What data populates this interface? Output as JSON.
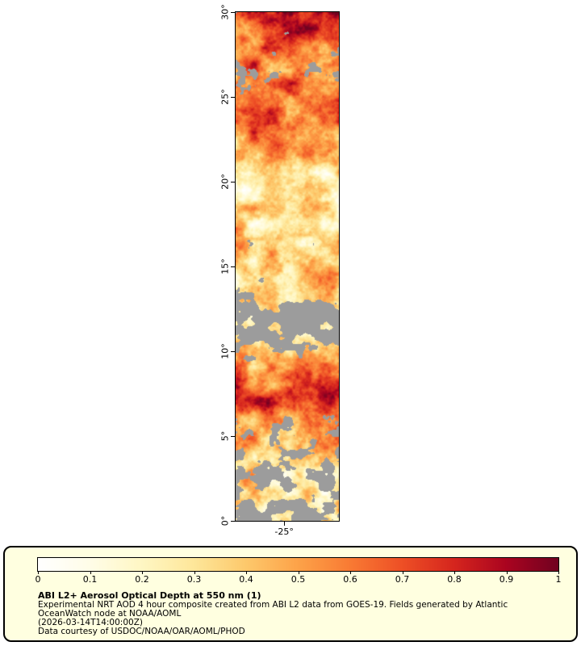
{
  "figure": {
    "map": {
      "no_data_color": "#9c9c9c",
      "border_color": "#000000",
      "y_axis_ticks": [
        {
          "label": "30°",
          "lat": 30
        },
        {
          "label": "25°",
          "lat": 25
        },
        {
          "label": "20°",
          "lat": 20
        },
        {
          "label": "15°",
          "lat": 15
        },
        {
          "label": "10°",
          "lat": 10
        },
        {
          "label": "5°",
          "lat": 5
        },
        {
          "label": "0°",
          "lat": 0
        }
      ],
      "x_axis_ticks": [
        {
          "label": "-25°",
          "frac": 0.47
        }
      ]
    },
    "legend": {
      "background": "#ffffe0",
      "border_color": "#000000",
      "colorbar_ticks": [
        "0",
        "0.1",
        "0.2",
        "0.3",
        "0.4",
        "0.5",
        "0.6",
        "0.7",
        "0.8",
        "0.9",
        "1"
      ],
      "colorbar_colors": [
        "#ffffff",
        "#fffde8",
        "#fff7c4",
        "#fee79a",
        "#fdc96c",
        "#fda349",
        "#f97b34",
        "#ee5026",
        "#d6261e",
        "#ab0520",
        "#720220"
      ],
      "title": "ABI L2+ Aerosol Optical Depth at 550 nm (1)",
      "lines": [
        "Experimental NRT AOD 4 hour composite created from ABI L2 data from GOES-19. Fields generated by Atlantic",
        "OceanWatch node at NOAA/AOML",
        "(2026-03-14T14:00:00Z)",
        "Data courtesy of USDOC/NOAA/OAR/AOML/PHOD"
      ]
    }
  },
  "chart_data": {
    "type": "heatmap",
    "title": "ABI L2+ Aerosol Optical Depth at 550 nm (1)",
    "colorbar": {
      "tick_values": [
        0,
        0.1,
        0.2,
        0.3,
        0.4,
        0.5,
        0.6,
        0.7,
        0.8,
        0.9,
        1
      ],
      "range": [
        0,
        1
      ]
    },
    "y_axis": {
      "tick_values_deg": [
        0,
        5,
        10,
        15,
        20,
        25,
        30
      ]
    },
    "x_axis": {
      "tick_values_deg": [
        -25
      ]
    },
    "no_data_shown_as": "gray",
    "lat_profile": [
      {
        "lat": 30,
        "mean_aod": 0.8,
        "coverage": 0.92
      },
      {
        "lat": 28,
        "mean_aod": 0.72,
        "coverage": 0.8
      },
      {
        "lat": 26.5,
        "mean_aod": 0.6,
        "coverage": 0.55
      },
      {
        "lat": 25,
        "mean_aod": 0.7,
        "coverage": 0.85
      },
      {
        "lat": 23.5,
        "mean_aod": 0.68,
        "coverage": 0.95
      },
      {
        "lat": 22,
        "mean_aod": 0.5,
        "coverage": 0.98
      },
      {
        "lat": 20.5,
        "mean_aod": 0.3,
        "coverage": 1.0
      },
      {
        "lat": 19,
        "mean_aod": 0.22,
        "coverage": 1.0
      },
      {
        "lat": 18,
        "mean_aod": 0.3,
        "coverage": 0.97
      },
      {
        "lat": 16.5,
        "mean_aod": 0.42,
        "coverage": 0.8
      },
      {
        "lat": 15,
        "mean_aod": 0.4,
        "coverage": 0.7
      },
      {
        "lat": 13.5,
        "mean_aod": 0.36,
        "coverage": 0.62
      },
      {
        "lat": 12.5,
        "mean_aod": 0.32,
        "coverage": 0.45
      },
      {
        "lat": 11,
        "mean_aod": 0.3,
        "coverage": 0.35
      },
      {
        "lat": 9.8,
        "mean_aod": 0.4,
        "coverage": 0.65
      },
      {
        "lat": 8.8,
        "mean_aod": 0.55,
        "coverage": 0.95
      },
      {
        "lat": 7.3,
        "mean_aod": 0.78,
        "coverage": 0.95
      },
      {
        "lat": 6.2,
        "mean_aod": 0.55,
        "coverage": 0.7
      },
      {
        "lat": 4.8,
        "mean_aod": 0.5,
        "coverage": 0.6
      },
      {
        "lat": 3.2,
        "mean_aod": 0.32,
        "coverage": 0.55
      },
      {
        "lat": 1.5,
        "mean_aod": 0.3,
        "coverage": 0.5
      },
      {
        "lat": 0,
        "mean_aod": 0.26,
        "coverage": 0.4
      }
    ]
  }
}
